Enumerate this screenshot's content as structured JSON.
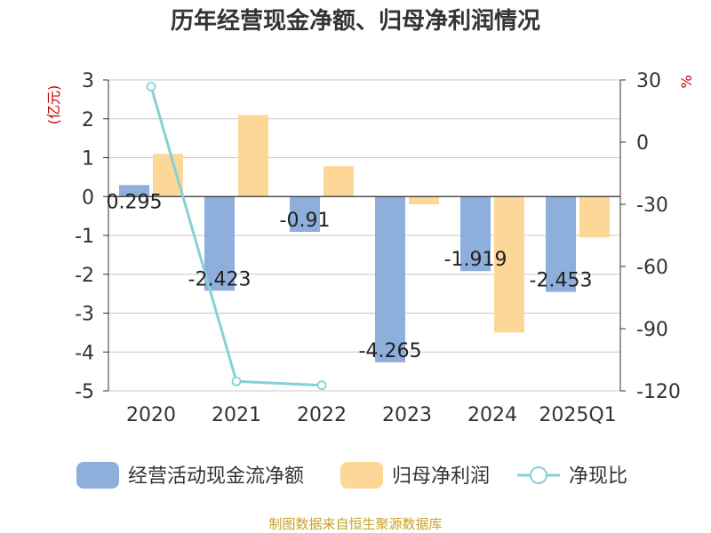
{
  "chart_data": {
    "type": "bar",
    "title": "历年经营现金净额、归母净利润情况",
    "categories": [
      "2020",
      "2021",
      "2022",
      "2023",
      "2024",
      "2025Q1"
    ],
    "series": [
      {
        "name": "经营活动现金流净额",
        "axis": "left",
        "color": "#8eaedb",
        "values": [
          0.295,
          -2.423,
          -0.91,
          -4.265,
          -1.919,
          -2.453
        ],
        "labels": [
          "0.295",
          "-2.423",
          "-0.91",
          "-4.265",
          "-1.919",
          "-2.453"
        ]
      },
      {
        "name": "归母净利润",
        "axis": "left",
        "color": "#fdd797",
        "values": [
          1.1,
          2.1,
          0.78,
          -0.2,
          -3.5,
          -1.05
        ]
      },
      {
        "name": "净现比",
        "axis": "right",
        "type": "line",
        "color": "#86d1d4",
        "values": [
          26.8,
          -115.4,
          -117.3,
          null,
          null,
          null
        ]
      }
    ],
    "left_axis": {
      "unit": "(亿元)",
      "ylim": [
        -5,
        3
      ],
      "ticks": [
        "3",
        "2",
        "1",
        "0",
        "-1",
        "-2",
        "-3",
        "-4",
        "-5"
      ]
    },
    "right_axis": {
      "unit": "%",
      "ylim": [
        -120,
        30
      ],
      "ticks": [
        "30",
        "0",
        "-30",
        "-60",
        "-90",
        "-120"
      ]
    },
    "legend_position": "bottom"
  },
  "source": "制图数据来自恒生聚源数据库"
}
